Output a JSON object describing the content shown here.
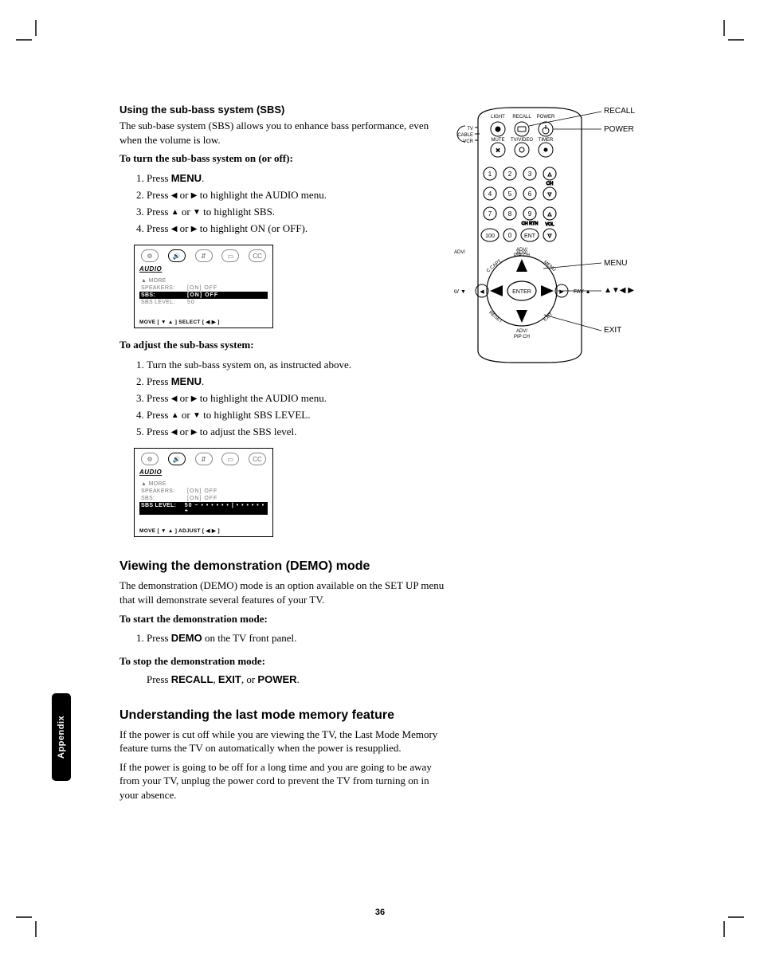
{
  "tab_label": "Appendix",
  "page_number": "36",
  "section_sbs": {
    "heading": "Using the sub-bass system (SBS)",
    "intro": "The sub-base system (SBS) allows you to enhance bass performance, even when the volume is low.",
    "turn_on_lead": "To turn the sub-bass system on (or off):",
    "steps_on": [
      "Press <b>MENU</b>.",
      "Press ◀ or ▶ to highlight the AUDIO menu.",
      "Press ▲ or ▼ to highlight SBS.",
      "Press ◀ or ▶ to highlight ON (or OFF)."
    ],
    "adjust_lead": "To adjust the sub-bass system:",
    "steps_adjust": [
      "Turn the sub-bass system on, as instructed above.",
      "Press <b>MENU</b>.",
      "Press ◀ or ▶ to highlight the AUDIO menu.",
      "Press ▲ or ▼ to highlight SBS LEVEL.",
      "Press ◀ or ▶ to adjust the SBS level."
    ]
  },
  "osd1": {
    "title": "AUDIO",
    "rows": [
      {
        "k": "▲ MORE",
        "v": ""
      },
      {
        "k": "SPEAKERS:",
        "v": "[ON] OFF"
      },
      {
        "k": "SBS:",
        "v": "[ON] OFF",
        "hl": true
      },
      {
        "k": "SBS LEVEL:",
        "v": "50"
      }
    ],
    "footer": "MOVE [ ▼ ▲ ]    SELECT [ ◀  ▶ ]"
  },
  "osd2": {
    "title": "AUDIO",
    "rows": [
      {
        "k": "▲ MORE",
        "v": ""
      },
      {
        "k": "SPEAKERS:",
        "v": "[ON] OFF"
      },
      {
        "k": "SBS:",
        "v": "[ON] OFF"
      },
      {
        "k": "SBS LEVEL:",
        "v": "50   − • • • • • • | • • • • • • +",
        "hl": true
      }
    ],
    "footer": "MOVE [ ▼ ▲ ]    ADJUST [ ◀  ▶ ]"
  },
  "section_demo": {
    "heading": "Viewing the demonstration (DEMO) mode",
    "intro": "The demonstration (DEMO) mode is an option available on the SET UP menu that will demonstrate several features of your TV.",
    "start_lead": "To start the demonstration mode:",
    "start_step": "Press <b>DEMO</b> on the TV front panel.",
    "stop_lead": "To stop the demonstration mode:",
    "stop_body": "Press  <b>RECALL</b>, <b>EXIT</b>, or <b>POWER</b>."
  },
  "section_lastmode": {
    "heading": "Understanding the last mode memory feature",
    "p1": "If the power is cut off while you are viewing the TV, the Last Mode Memory feature turns the TV on automatically when the power is resupplied.",
    "p2": "If the power is going to be off for a long time and you are going to be away from your TV, unplug the power cord to prevent the TV from turning on in your absence."
  },
  "remote": {
    "callouts": {
      "recall": "RECALL",
      "power": "POWER",
      "menu": "MENU",
      "arrows": "▲▼◀ ▶",
      "exit": "EXIT",
      "fav_left": "FAV ▼",
      "fav_right": "FAV ▲"
    },
    "top_labels": [
      "LIGHT",
      "RECALL",
      "POWER",
      "MUTE",
      "TV/VIDEO",
      "TIMER"
    ],
    "switch_labels": [
      "TV",
      "CABLE",
      "VCR"
    ],
    "numpad": [
      [
        "1",
        "2",
        "3"
      ],
      [
        "4",
        "5",
        "6"
      ],
      [
        "7",
        "8",
        "9"
      ],
      [
        "100",
        "0",
        "ENT"
      ]
    ],
    "ch_label": "CH",
    "vol_label": "VOL",
    "chrtn_label": "CH RTN",
    "adv_pip": "ADV/\nPIP CH",
    "ccapt": "C.CAPT",
    "menu_btn": "MENU",
    "reset_btn": "RESET",
    "exit_btn": "EXIT",
    "enter_btn": "ENTER"
  },
  "colors": {
    "text": "#000000",
    "muted": "#777777",
    "bg": "#ffffff",
    "hl_bg": "#000000",
    "hl_fg": "#ffffff"
  }
}
